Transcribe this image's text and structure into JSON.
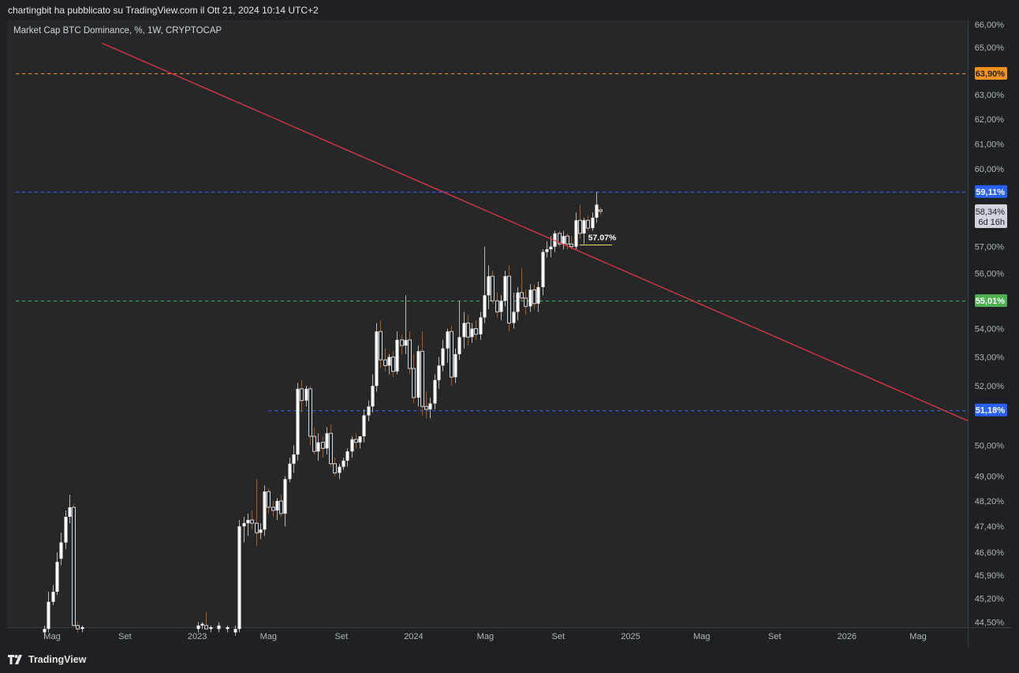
{
  "header": {
    "text": "chartingbit ha pubblicato su TradingView.com il Ott 21, 2024 10:14 UTC+2"
  },
  "footer": {
    "brand": "TradingView",
    "logo_icon": "tradingview-logo-icon"
  },
  "chart_data": {
    "type": "candlestick",
    "title": "Market Cap BTC Dominance, %, 1W, CRYPTOCAP",
    "y_scale": "log",
    "ylim": [
      44.35,
      66.2
    ],
    "y_ticks": [
      {
        "v": 66.0,
        "label": "66,00%"
      },
      {
        "v": 65.0,
        "label": "65,00%"
      },
      {
        "v": 63.0,
        "label": "63,00%"
      },
      {
        "v": 62.0,
        "label": "62,00%"
      },
      {
        "v": 61.0,
        "label": "61,00%"
      },
      {
        "v": 60.0,
        "label": "60,00%"
      },
      {
        "v": 57.0,
        "label": "57,00%"
      },
      {
        "v": 56.0,
        "label": "56,00%"
      },
      {
        "v": 54.0,
        "label": "54,00%"
      },
      {
        "v": 53.0,
        "label": "53,00%"
      },
      {
        "v": 52.0,
        "label": "52,00%"
      },
      {
        "v": 50.0,
        "label": "50,00%"
      },
      {
        "v": 49.0,
        "label": "49,00%"
      },
      {
        "v": 48.2,
        "label": "48,20%"
      },
      {
        "v": 47.4,
        "label": "47,40%"
      },
      {
        "v": 46.6,
        "label": "46,60%"
      },
      {
        "v": 45.9,
        "label": "45,90%"
      },
      {
        "v": 45.2,
        "label": "45,20%"
      },
      {
        "v": 44.5,
        "label": "44,50%"
      }
    ],
    "x_ticks": [
      {
        "date": "2022-05-01",
        "label": "Mag"
      },
      {
        "date": "2022-09-01",
        "label": "Set"
      },
      {
        "date": "2023-01-01",
        "label": "2023"
      },
      {
        "date": "2023-05-01",
        "label": "Mag"
      },
      {
        "date": "2023-09-01",
        "label": "Set"
      },
      {
        "date": "2024-01-01",
        "label": "2024"
      },
      {
        "date": "2024-05-01",
        "label": "Mag"
      },
      {
        "date": "2024-09-01",
        "label": "Set"
      },
      {
        "date": "2025-01-01",
        "label": "2025"
      },
      {
        "date": "2025-05-01",
        "label": "Mag"
      },
      {
        "date": "2025-09-01",
        "label": "Set"
      },
      {
        "date": "2026-01-01",
        "label": "2026"
      },
      {
        "date": "2026-05-01",
        "label": "Mag"
      }
    ],
    "horizontal_levels": [
      {
        "value": 63.9,
        "label": "63,90%",
        "color": "#f7931a",
        "dash": true,
        "from": "2022-03-01"
      },
      {
        "value": 59.11,
        "label": "59,11%",
        "color": "#2962ff",
        "dash": true,
        "from": "2022-03-01"
      },
      {
        "value": 55.01,
        "label": "55,01%",
        "color": "#4caf50",
        "dash": true,
        "from": "2022-03-01"
      },
      {
        "value": 51.18,
        "label": "51,18%",
        "color": "#2962ff",
        "dash": true,
        "from": "2023-05-01"
      }
    ],
    "current_price": {
      "value": 58.34,
      "label": "58,34%",
      "countdown": "6d 16h"
    },
    "annotation": {
      "text": "57.07%",
      "value": 57.07,
      "x_start": "2024-10-07",
      "x_end": "2024-12-01",
      "color": "#f5d96b"
    },
    "trendline": {
      "color": "#f23645",
      "points": [
        {
          "date": "2022-06-01",
          "value": 65.78
        },
        {
          "date": "2024-09-01",
          "value": 57.17
        }
      ]
    },
    "candles": [
      {
        "date": "2022-04-18",
        "o": 44.2,
        "h": 44.4,
        "l": 44.0,
        "c": 44.3
      },
      {
        "date": "2022-04-25",
        "o": 44.3,
        "h": 45.4,
        "l": 44.2,
        "c": 45.1
      },
      {
        "date": "2022-05-02",
        "o": 45.1,
        "h": 45.6,
        "l": 45.0,
        "c": 45.4
      },
      {
        "date": "2022-05-09",
        "o": 45.4,
        "h": 46.6,
        "l": 45.3,
        "c": 46.3
      },
      {
        "date": "2022-05-16",
        "o": 46.4,
        "h": 47.2,
        "l": 46.2,
        "c": 46.9
      },
      {
        "date": "2022-05-23",
        "o": 46.9,
        "h": 47.9,
        "l": 46.7,
        "c": 47.7
      },
      {
        "date": "2022-05-30",
        "o": 47.7,
        "h": 48.4,
        "l": 47.5,
        "c": 48.0
      },
      {
        "date": "2022-06-06",
        "o": 48.0,
        "h": 48.1,
        "l": 44.4,
        "c": 44.4
      },
      {
        "date": "2022-06-13",
        "o": 44.4,
        "h": 44.5,
        "l": 44.2,
        "c": 44.3
      },
      {
        "date": "2022-06-20",
        "o": 44.3,
        "h": 44.4,
        "l": 44.2,
        "c": 44.35
      },
      {
        "date": "2023-01-02",
        "o": 44.3,
        "h": 44.5,
        "l": 44.2,
        "c": 44.4
      },
      {
        "date": "2023-01-09",
        "o": 44.4,
        "h": 44.5,
        "l": 44.3,
        "c": 44.45
      },
      {
        "date": "2023-01-16",
        "o": 44.4,
        "h": 44.8,
        "l": 44.3,
        "c": 44.3
      },
      {
        "date": "2023-01-23",
        "o": 44.3,
        "h": 44.4,
        "l": 44.2,
        "c": 44.35
      },
      {
        "date": "2023-02-06",
        "o": 44.3,
        "h": 44.5,
        "l": 44.2,
        "c": 44.4
      },
      {
        "date": "2023-02-20",
        "o": 44.3,
        "h": 44.4,
        "l": 44.2,
        "c": 44.35
      },
      {
        "date": "2023-03-06",
        "o": 44.2,
        "h": 44.4,
        "l": 44.1,
        "c": 44.3
      },
      {
        "date": "2023-03-13",
        "o": 44.3,
        "h": 47.6,
        "l": 44.2,
        "c": 47.4
      },
      {
        "date": "2023-03-20",
        "o": 47.4,
        "h": 47.7,
        "l": 46.9,
        "c": 47.5
      },
      {
        "date": "2023-03-27",
        "o": 47.5,
        "h": 47.8,
        "l": 47.1,
        "c": 47.6
      },
      {
        "date": "2023-04-03",
        "o": 47.6,
        "h": 47.9,
        "l": 47.3,
        "c": 47.5
      },
      {
        "date": "2023-04-10",
        "o": 47.5,
        "h": 48.9,
        "l": 46.8,
        "c": 47.2
      },
      {
        "date": "2023-04-17",
        "o": 47.2,
        "h": 47.5,
        "l": 47.0,
        "c": 47.3
      },
      {
        "date": "2023-04-24",
        "o": 47.3,
        "h": 48.7,
        "l": 47.1,
        "c": 48.5
      },
      {
        "date": "2023-05-01",
        "o": 48.5,
        "h": 48.6,
        "l": 47.8,
        "c": 48.0
      },
      {
        "date": "2023-05-08",
        "o": 48.0,
        "h": 48.2,
        "l": 47.7,
        "c": 47.9
      },
      {
        "date": "2023-05-15",
        "o": 47.9,
        "h": 48.3,
        "l": 47.6,
        "c": 48.2
      },
      {
        "date": "2023-05-22",
        "o": 48.2,
        "h": 48.4,
        "l": 47.7,
        "c": 47.8
      },
      {
        "date": "2023-05-29",
        "o": 47.8,
        "h": 49.0,
        "l": 47.4,
        "c": 48.9
      },
      {
        "date": "2023-06-05",
        "o": 48.9,
        "h": 49.6,
        "l": 48.8,
        "c": 49.4
      },
      {
        "date": "2023-06-12",
        "o": 49.4,
        "h": 50.0,
        "l": 49.1,
        "c": 49.7
      },
      {
        "date": "2023-06-19",
        "o": 49.7,
        "h": 52.1,
        "l": 49.5,
        "c": 51.9
      },
      {
        "date": "2023-06-26",
        "o": 51.9,
        "h": 52.2,
        "l": 51.1,
        "c": 51.5
      },
      {
        "date": "2023-07-03",
        "o": 51.5,
        "h": 52.0,
        "l": 51.3,
        "c": 51.9
      },
      {
        "date": "2023-07-10",
        "o": 51.9,
        "h": 52.0,
        "l": 50.0,
        "c": 50.3
      },
      {
        "date": "2023-07-17",
        "o": 50.3,
        "h": 50.6,
        "l": 49.7,
        "c": 49.8
      },
      {
        "date": "2023-07-24",
        "o": 49.8,
        "h": 50.4,
        "l": 49.5,
        "c": 50.1
      },
      {
        "date": "2023-07-31",
        "o": 50.1,
        "h": 50.3,
        "l": 49.6,
        "c": 49.9
      },
      {
        "date": "2023-08-07",
        "o": 49.9,
        "h": 50.6,
        "l": 49.7,
        "c": 50.4
      },
      {
        "date": "2023-08-14",
        "o": 50.4,
        "h": 50.7,
        "l": 49.3,
        "c": 49.4
      },
      {
        "date": "2023-08-21",
        "o": 49.4,
        "h": 49.6,
        "l": 49.0,
        "c": 49.1
      },
      {
        "date": "2023-08-28",
        "o": 49.1,
        "h": 49.4,
        "l": 48.9,
        "c": 49.3
      },
      {
        "date": "2023-09-04",
        "o": 49.3,
        "h": 49.6,
        "l": 49.2,
        "c": 49.5
      },
      {
        "date": "2023-09-11",
        "o": 49.5,
        "h": 49.9,
        "l": 49.3,
        "c": 49.8
      },
      {
        "date": "2023-09-18",
        "o": 49.8,
        "h": 50.3,
        "l": 49.6,
        "c": 50.2
      },
      {
        "date": "2023-09-25",
        "o": 50.2,
        "h": 50.4,
        "l": 49.9,
        "c": 50.1
      },
      {
        "date": "2023-10-02",
        "o": 50.1,
        "h": 50.3,
        "l": 49.9,
        "c": 50.3
      },
      {
        "date": "2023-10-09",
        "o": 50.3,
        "h": 51.2,
        "l": 50.1,
        "c": 51.0
      },
      {
        "date": "2023-10-16",
        "o": 51.0,
        "h": 51.5,
        "l": 50.8,
        "c": 51.3
      },
      {
        "date": "2023-10-23",
        "o": 51.3,
        "h": 52.4,
        "l": 51.1,
        "c": 52.0
      },
      {
        "date": "2023-10-30",
        "o": 52.0,
        "h": 54.2,
        "l": 51.8,
        "c": 53.9
      },
      {
        "date": "2023-11-06",
        "o": 53.9,
        "h": 54.3,
        "l": 52.6,
        "c": 52.9
      },
      {
        "date": "2023-11-13",
        "o": 52.9,
        "h": 53.3,
        "l": 52.5,
        "c": 52.7
      },
      {
        "date": "2023-11-20",
        "o": 52.7,
        "h": 53.1,
        "l": 52.4,
        "c": 53.0
      },
      {
        "date": "2023-11-27",
        "o": 53.0,
        "h": 53.2,
        "l": 52.3,
        "c": 52.5
      },
      {
        "date": "2023-12-04",
        "o": 52.5,
        "h": 53.9,
        "l": 52.4,
        "c": 53.6
      },
      {
        "date": "2023-12-11",
        "o": 53.6,
        "h": 53.8,
        "l": 53.1,
        "c": 53.4
      },
      {
        "date": "2023-12-18",
        "o": 53.4,
        "h": 55.2,
        "l": 53.1,
        "c": 53.6
      },
      {
        "date": "2023-12-25",
        "o": 53.6,
        "h": 53.9,
        "l": 52.4,
        "c": 52.6
      },
      {
        "date": "2024-01-01",
        "o": 52.6,
        "h": 53.1,
        "l": 51.4,
        "c": 51.6
      },
      {
        "date": "2024-01-08",
        "o": 51.6,
        "h": 53.4,
        "l": 51.3,
        "c": 53.2
      },
      {
        "date": "2024-01-15",
        "o": 53.2,
        "h": 53.9,
        "l": 51.0,
        "c": 51.3
      },
      {
        "date": "2024-01-22",
        "o": 51.3,
        "h": 51.8,
        "l": 50.9,
        "c": 51.2
      },
      {
        "date": "2024-01-29",
        "o": 51.2,
        "h": 51.6,
        "l": 50.9,
        "c": 51.4
      },
      {
        "date": "2024-02-05",
        "o": 51.4,
        "h": 52.4,
        "l": 51.2,
        "c": 52.2
      },
      {
        "date": "2024-02-12",
        "o": 52.2,
        "h": 53.0,
        "l": 51.9,
        "c": 52.7
      },
      {
        "date": "2024-02-19",
        "o": 52.7,
        "h": 53.6,
        "l": 52.5,
        "c": 53.3
      },
      {
        "date": "2024-02-26",
        "o": 53.3,
        "h": 54.0,
        "l": 52.8,
        "c": 53.9
      },
      {
        "date": "2024-03-04",
        "o": 53.9,
        "h": 54.1,
        "l": 52.0,
        "c": 52.3
      },
      {
        "date": "2024-03-11",
        "o": 52.3,
        "h": 53.3,
        "l": 52.1,
        "c": 53.1
      },
      {
        "date": "2024-03-18",
        "o": 53.1,
        "h": 55.0,
        "l": 52.9,
        "c": 53.7
      },
      {
        "date": "2024-03-25",
        "o": 53.7,
        "h": 54.6,
        "l": 53.3,
        "c": 54.2
      },
      {
        "date": "2024-04-01",
        "o": 54.2,
        "h": 54.5,
        "l": 53.4,
        "c": 53.7
      },
      {
        "date": "2024-04-08",
        "o": 53.7,
        "h": 54.2,
        "l": 53.5,
        "c": 54.0
      },
      {
        "date": "2024-04-15",
        "o": 54.0,
        "h": 54.3,
        "l": 53.6,
        "c": 53.8
      },
      {
        "date": "2024-04-22",
        "o": 53.8,
        "h": 54.6,
        "l": 53.6,
        "c": 54.4
      },
      {
        "date": "2024-04-29",
        "o": 54.4,
        "h": 57.0,
        "l": 54.2,
        "c": 55.2
      },
      {
        "date": "2024-05-06",
        "o": 55.2,
        "h": 56.3,
        "l": 54.7,
        "c": 55.9
      },
      {
        "date": "2024-05-13",
        "o": 55.9,
        "h": 56.1,
        "l": 54.9,
        "c": 55.0
      },
      {
        "date": "2024-05-20",
        "o": 55.0,
        "h": 55.3,
        "l": 54.4,
        "c": 54.6
      },
      {
        "date": "2024-05-27",
        "o": 54.6,
        "h": 55.2,
        "l": 54.3,
        "c": 55.0
      },
      {
        "date": "2024-06-03",
        "o": 55.0,
        "h": 56.1,
        "l": 54.8,
        "c": 55.9
      },
      {
        "date": "2024-06-10",
        "o": 55.9,
        "h": 56.3,
        "l": 53.9,
        "c": 54.2
      },
      {
        "date": "2024-06-17",
        "o": 54.2,
        "h": 55.3,
        "l": 54.0,
        "c": 54.6
      },
      {
        "date": "2024-06-24",
        "o": 54.6,
        "h": 55.5,
        "l": 54.3,
        "c": 55.3
      },
      {
        "date": "2024-07-01",
        "o": 55.3,
        "h": 56.2,
        "l": 55.0,
        "c": 55.1
      },
      {
        "date": "2024-07-08",
        "o": 55.1,
        "h": 55.4,
        "l": 54.5,
        "c": 54.8
      },
      {
        "date": "2024-07-15",
        "o": 54.8,
        "h": 55.6,
        "l": 54.6,
        "c": 55.4
      },
      {
        "date": "2024-07-22",
        "o": 55.4,
        "h": 55.6,
        "l": 54.7,
        "c": 54.9
      },
      {
        "date": "2024-07-29",
        "o": 54.9,
        "h": 55.7,
        "l": 54.6,
        "c": 55.5
      },
      {
        "date": "2024-08-05",
        "o": 55.5,
        "h": 56.9,
        "l": 55.2,
        "c": 56.8
      },
      {
        "date": "2024-08-12",
        "o": 56.8,
        "h": 57.2,
        "l": 56.6,
        "c": 56.9
      },
      {
        "date": "2024-08-19",
        "o": 56.9,
        "h": 57.4,
        "l": 56.6,
        "c": 57.0
      },
      {
        "date": "2024-08-26",
        "o": 57.0,
        "h": 57.6,
        "l": 56.8,
        "c": 57.5
      },
      {
        "date": "2024-09-02",
        "o": 57.5,
        "h": 57.6,
        "l": 57.0,
        "c": 57.1
      },
      {
        "date": "2024-09-09",
        "o": 57.1,
        "h": 57.6,
        "l": 56.9,
        "c": 57.4
      },
      {
        "date": "2024-09-16",
        "o": 57.4,
        "h": 57.5,
        "l": 56.9,
        "c": 57.1
      },
      {
        "date": "2024-09-23",
        "o": 57.1,
        "h": 57.4,
        "l": 56.9,
        "c": 57.0
      },
      {
        "date": "2024-09-30",
        "o": 57.0,
        "h": 58.3,
        "l": 56.9,
        "c": 58.0
      },
      {
        "date": "2024-10-07",
        "o": 58.0,
        "h": 58.6,
        "l": 57.3,
        "c": 57.5
      },
      {
        "date": "2024-10-14",
        "o": 57.5,
        "h": 58.1,
        "l": 57.1,
        "c": 58.0
      },
      {
        "date": "2024-10-21",
        "o": 58.0,
        "h": 58.2,
        "l": 57.6,
        "c": 57.7
      },
      {
        "date": "2024-10-28",
        "o": 57.7,
        "h": 58.3,
        "l": 57.6,
        "c": 58.1
      },
      {
        "date": "2024-11-04",
        "o": 58.1,
        "h": 59.1,
        "l": 57.9,
        "c": 58.6
      },
      {
        "date": "2024-11-11",
        "o": 58.4,
        "h": 58.5,
        "l": 58.2,
        "c": 58.34
      }
    ]
  }
}
